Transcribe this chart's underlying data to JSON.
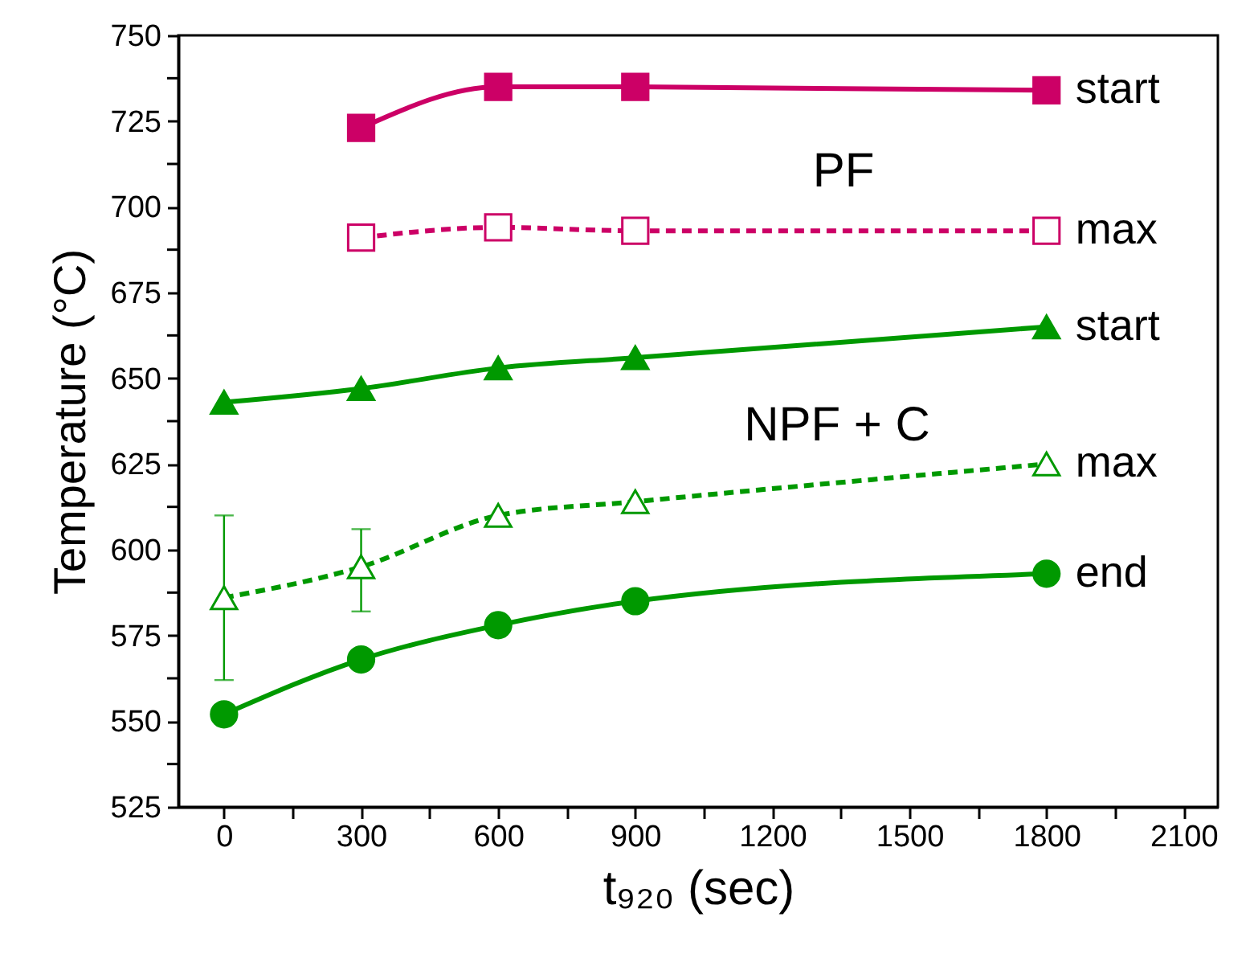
{
  "chart_data": {
    "type": "line",
    "xlabel": "t₉₂₀ (sec)",
    "ylabel": "Temperature (°C)",
    "xlim": [
      -100,
      2175
    ],
    "xticks": [
      0,
      {
        "value": 150,
        "label": null
      },
      300,
      {
        "value": 450,
        "label": null
      },
      600,
      {
        "value": 750,
        "label": null
      },
      900,
      {
        "value": 1050,
        "label": null
      },
      1200,
      {
        "value": 1350,
        "label": null
      },
      1500,
      {
        "value": 1650,
        "label": null
      },
      1800,
      {
        "value": 1950,
        "label": null
      },
      2100
    ],
    "ylim": [
      525,
      750
    ],
    "yticks": [
      525,
      {
        "value": 537.5,
        "label": null
      },
      550,
      {
        "value": 562.5,
        "label": null
      },
      575,
      {
        "value": 587.5,
        "label": null
      },
      600,
      {
        "value": 612.5,
        "label": null
      },
      625,
      {
        "value": 637.5,
        "label": null
      },
      650,
      {
        "value": 662.5,
        "label": null
      },
      675,
      {
        "value": 687.5,
        "label": null
      },
      700,
      {
        "value": 712.5,
        "label": null
      },
      725,
      {
        "value": 737.5,
        "label": null
      },
      750
    ],
    "grid": false,
    "series": [
      {
        "name": "start",
        "color": "#cc0066",
        "marker": "square",
        "line_style": "solid",
        "x": [
          300,
          600,
          900,
          1800
        ],
        "values": [
          723,
          735,
          735,
          734
        ]
      },
      {
        "name": "max",
        "color": "#cc0066",
        "marker": "square",
        "line_style": "dashed",
        "x": [
          300,
          600,
          900,
          1800
        ],
        "values": [
          691,
          694,
          693,
          693
        ]
      },
      {
        "name": "start",
        "color": "#009900",
        "marker": "triangle",
        "line_style": "solid",
        "x": [
          0,
          300,
          600,
          900,
          1800
        ],
        "values": [
          643,
          647,
          653,
          656,
          665
        ]
      },
      {
        "name": "max",
        "color": "#009900",
        "marker": "triangle",
        "line_style": "dashed",
        "x": [
          0,
          300,
          600,
          900,
          1800
        ],
        "values": [
          586,
          595,
          610,
          614,
          625
        ],
        "errors": [
          [
            562,
            610
          ],
          [
            582,
            606
          ],
          null,
          null,
          null
        ]
      },
      {
        "name": "end",
        "color": "#009900",
        "marker": "circle",
        "line_style": "solid",
        "x": [
          0,
          300,
          600,
          900,
          1800
        ],
        "values": [
          552,
          568,
          578,
          585,
          593
        ]
      }
    ],
    "annotations": [
      "PF",
      "NPF + C"
    ]
  }
}
